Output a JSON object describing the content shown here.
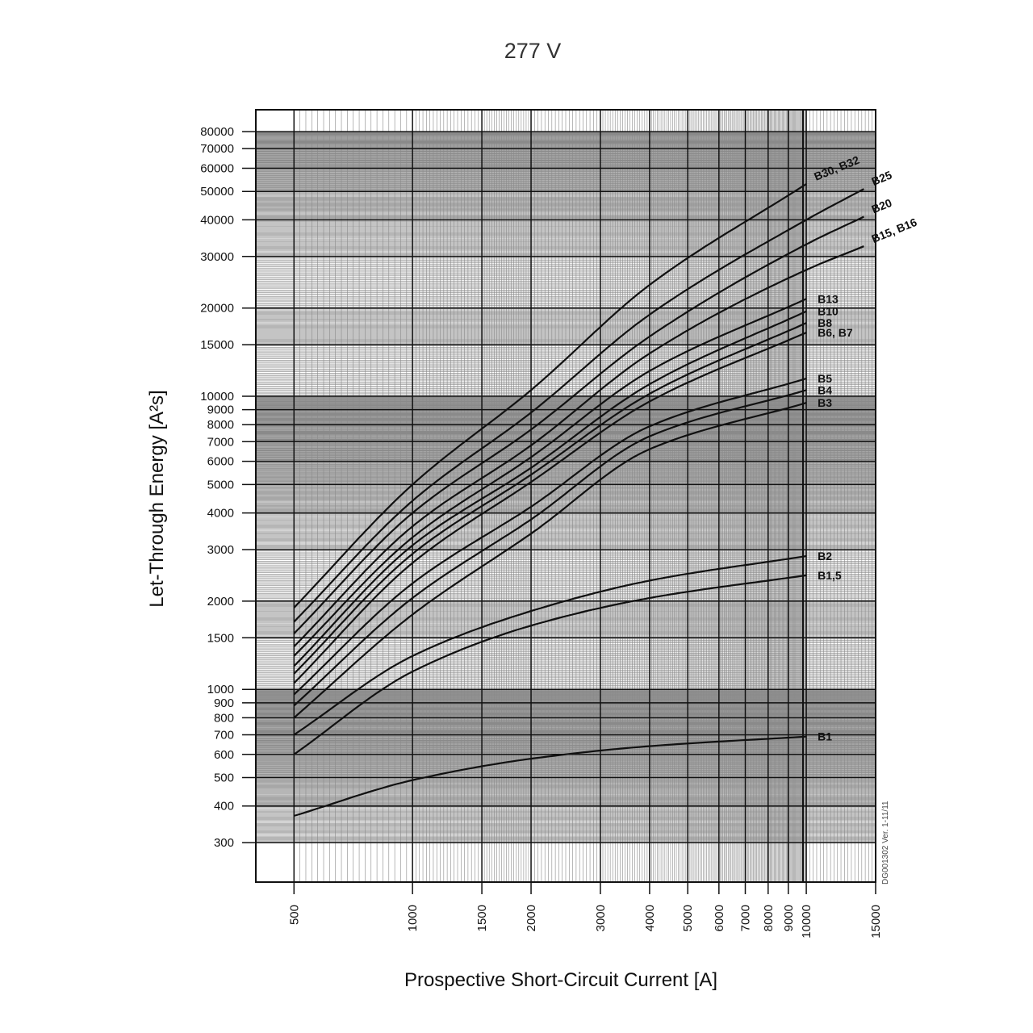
{
  "chart_data": {
    "type": "line",
    "title": "277 V",
    "xlabel": "Prospective Short-Circuit Current [A]",
    "ylabel": "Let-Through Energy [A²s]",
    "x_scale": "log",
    "y_scale": "log",
    "xlim": [
      400,
      15000
    ],
    "ylim": [
      220,
      95000
    ],
    "grid": true,
    "legend": "inline-labels",
    "x_ticks": [
      500,
      1000,
      1500,
      2000,
      3000,
      4000,
      5000,
      6000,
      7000,
      8000,
      9000,
      10000,
      15000
    ],
    "y_ticks": [
      300,
      400,
      500,
      600,
      700,
      800,
      900,
      1000,
      1500,
      2000,
      3000,
      4000,
      5000,
      6000,
      7000,
      8000,
      9000,
      10000,
      15000,
      20000,
      30000,
      40000,
      50000,
      60000,
      70000,
      80000
    ],
    "x": [
      500,
      1000,
      2000,
      4000,
      10000,
      14000
    ],
    "series": [
      {
        "name": "B30, B32",
        "values": [
          1900,
          5000,
          10500,
          24000,
          53000,
          null
        ]
      },
      {
        "name": "B25",
        "values": [
          1700,
          4400,
          8800,
          19000,
          40000,
          51000
        ]
      },
      {
        "name": "B20",
        "values": [
          1550,
          4000,
          7700,
          16000,
          33000,
          41000
        ]
      },
      {
        "name": "B15, B16",
        "values": [
          1400,
          3600,
          6800,
          14000,
          27000,
          32500
        ]
      },
      {
        "name": "B13",
        "values": [
          1300,
          3300,
          6200,
          12200,
          21500,
          null
        ]
      },
      {
        "name": "B10",
        "values": [
          1200,
          3100,
          5700,
          11000,
          19500,
          null
        ]
      },
      {
        "name": "B8",
        "values": [
          1130,
          2900,
          5400,
          10200,
          17800,
          null
        ]
      },
      {
        "name": "B6, B7",
        "values": [
          1050,
          2700,
          5100,
          9600,
          16500,
          null
        ]
      },
      {
        "name": "B5",
        "values": [
          960,
          2300,
          4200,
          7900,
          11500,
          null
        ]
      },
      {
        "name": "B4",
        "values": [
          880,
          2050,
          3800,
          7300,
          10500,
          null
        ]
      },
      {
        "name": "B3",
        "values": [
          800,
          1800,
          3400,
          6600,
          9500,
          null
        ]
      },
      {
        "name": "B2",
        "values": [
          700,
          1300,
          1850,
          2350,
          2850,
          null
        ]
      },
      {
        "name": "B1,5",
        "values": [
          600,
          1150,
          1650,
          2050,
          2450,
          null
        ]
      },
      {
        "name": "B1",
        "values": [
          370,
          490,
          580,
          640,
          690,
          null
        ]
      }
    ],
    "annotations": [
      "DG001302 Ver. 1-11/11"
    ]
  }
}
